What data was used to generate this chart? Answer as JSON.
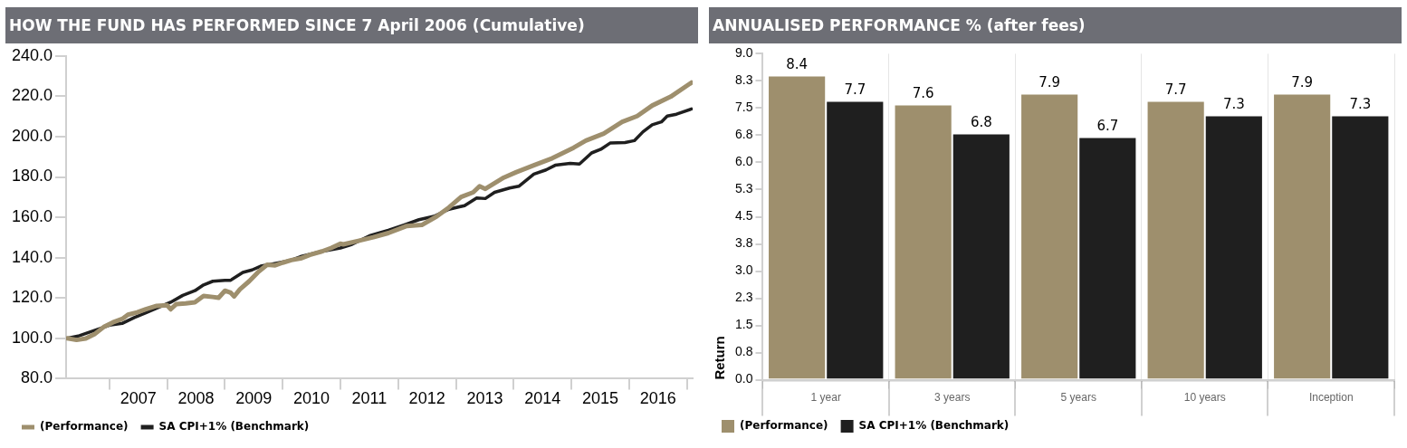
{
  "chart_data": [
    {
      "type": "line",
      "title": "HOW THE FUND HAS PERFORMED SINCE 7 April 2006 (Cumulative)",
      "xlim": [
        2006.25,
        2017.1
      ],
      "ylim": [
        80,
        240
      ],
      "xticks": [
        {
          "value": 2007,
          "label": null
        },
        {
          "value": 2007.5,
          "label": "2007"
        },
        {
          "value": 2008,
          "label": null
        },
        {
          "value": 2008.5,
          "label": "2008"
        },
        {
          "value": 2009,
          "label": null
        },
        {
          "value": 2009.5,
          "label": "2009"
        },
        {
          "value": 2010,
          "label": null
        },
        {
          "value": 2010.5,
          "label": "2010"
        },
        {
          "value": 2011,
          "label": null
        },
        {
          "value": 2011.5,
          "label": "2011"
        },
        {
          "value": 2012,
          "label": null
        },
        {
          "value": 2012.5,
          "label": "2012"
        },
        {
          "value": 2013,
          "label": null
        },
        {
          "value": 2013.5,
          "label": "2013"
        },
        {
          "value": 2014,
          "label": null
        },
        {
          "value": 2014.5,
          "label": "2014"
        },
        {
          "value": 2015,
          "label": null
        },
        {
          "value": 2015.5,
          "label": "2015"
        },
        {
          "value": 2016,
          "label": null
        },
        {
          "value": 2016.5,
          "label": "2016"
        },
        {
          "value": 2017,
          "label": null
        }
      ],
      "yticks": [
        {
          "value": 80,
          "label": "80.0"
        },
        {
          "value": 100,
          "label": "100.0"
        },
        {
          "value": 120,
          "label": "120.0"
        },
        {
          "value": 140,
          "label": "140.0"
        },
        {
          "value": 160,
          "label": "160.0"
        },
        {
          "value": 180,
          "label": "180.0"
        },
        {
          "value": 200,
          "label": "200.0"
        },
        {
          "value": 220,
          "label": "220.0"
        },
        {
          "value": 240,
          "label": "240.0"
        }
      ],
      "grid": false,
      "legend": "bottom",
      "marker": "none",
      "line_style": "solid",
      "series": [
        {
          "name": "(Performance)",
          "color": "#9e8f6d",
          "x": [
            2006.27,
            2006.43,
            2006.59,
            2006.74,
            2006.9,
            2007.06,
            2007.22,
            2007.32,
            2007.48,
            2007.63,
            2007.82,
            2008.0,
            2008.06,
            2008.16,
            2008.32,
            2008.48,
            2008.63,
            2008.79,
            2008.89,
            2009.0,
            2009.1,
            2009.16,
            2009.26,
            2009.42,
            2009.57,
            2009.73,
            2009.87,
            2010.0,
            2010.15,
            2010.31,
            2010.47,
            2010.68,
            2010.84,
            2011.0,
            2011.05,
            2011.31,
            2011.57,
            2011.83,
            2012.15,
            2012.41,
            2012.67,
            2012.88,
            2013.09,
            2013.3,
            2013.41,
            2013.51,
            2013.83,
            2014.04,
            2014.35,
            2014.67,
            2015.04,
            2015.25,
            2015.56,
            2015.88,
            2016.14,
            2016.4,
            2016.72,
            2017.08
          ],
          "values": [
            100.0,
            99.2,
            99.9,
            102.0,
            105.6,
            107.9,
            109.6,
            111.7,
            112.9,
            114.4,
            116.1,
            116.4,
            114.4,
            117.0,
            117.3,
            117.9,
            121.0,
            120.5,
            120.1,
            123.6,
            122.6,
            120.8,
            124.3,
            128.3,
            132.7,
            136.5,
            136.2,
            137.5,
            138.8,
            139.6,
            141.4,
            143.1,
            144.8,
            146.9,
            146.6,
            148.3,
            150.1,
            152.2,
            155.7,
            156.2,
            160.5,
            164.9,
            170.1,
            172.4,
            175.4,
            174.1,
            179.7,
            182.3,
            185.8,
            189.3,
            194.5,
            198.0,
            201.5,
            207.3,
            210.2,
            215.4,
            219.8,
            226.8
          ]
        },
        {
          "name": "SA CPI+1% (Benchmark)",
          "color": "#1f1f1f",
          "x": [
            2006.27,
            2006.48,
            2006.74,
            2007.0,
            2007.22,
            2007.43,
            2007.63,
            2007.84,
            2008.06,
            2008.27,
            2008.48,
            2008.63,
            2008.79,
            2009.0,
            2009.1,
            2009.31,
            2009.47,
            2009.62,
            2009.84,
            2010.0,
            2010.15,
            2010.31,
            2010.68,
            2011.0,
            2011.2,
            2011.52,
            2011.83,
            2012.1,
            2012.36,
            2012.62,
            2012.88,
            2013.15,
            2013.36,
            2013.51,
            2013.67,
            2013.93,
            2014.09,
            2014.35,
            2014.56,
            2014.72,
            2014.98,
            2015.14,
            2015.35,
            2015.51,
            2015.67,
            2015.93,
            2016.09,
            2016.24,
            2016.4,
            2016.56,
            2016.66,
            2016.82,
            2017.08
          ],
          "values": [
            100.1,
            101.3,
            103.9,
            106.5,
            107.4,
            110.3,
            112.6,
            115.2,
            117.9,
            121.3,
            123.6,
            126.5,
            128.3,
            128.8,
            128.8,
            132.7,
            133.9,
            135.8,
            137.0,
            137.9,
            138.8,
            140.5,
            143.1,
            144.8,
            146.6,
            151.0,
            153.6,
            156.2,
            158.8,
            160.5,
            164.0,
            165.8,
            169.6,
            169.3,
            172.4,
            174.5,
            175.4,
            181.4,
            183.5,
            185.8,
            186.7,
            186.4,
            191.9,
            193.7,
            196.8,
            197.1,
            198.0,
            202.4,
            205.9,
            207.3,
            210.2,
            211.1,
            213.7
          ]
        }
      ]
    },
    {
      "type": "bar",
      "title": "ANNUALISED PERFORMANCE % (after fees)",
      "ylabel": "Return",
      "categories": [
        "1 year",
        "3 years",
        "5 years",
        "10 years",
        "Inception"
      ],
      "ylim": [
        0,
        9
      ],
      "yticks": [
        {
          "value": 0,
          "label": "0.0"
        },
        {
          "value": 0.75,
          "label": "0.8"
        },
        {
          "value": 1.5,
          "label": "1.5"
        },
        {
          "value": 2.25,
          "label": "2.3"
        },
        {
          "value": 3,
          "label": "3.0"
        },
        {
          "value": 3.75,
          "label": "3.8"
        },
        {
          "value": 4.5,
          "label": "4.5"
        },
        {
          "value": 5.25,
          "label": "5.3"
        },
        {
          "value": 6,
          "label": "6.0"
        },
        {
          "value": 6.75,
          "label": "6.8"
        },
        {
          "value": 7.5,
          "label": "7.5"
        },
        {
          "value": 8.25,
          "label": "8.3"
        },
        {
          "value": 9,
          "label": "9.0"
        }
      ],
      "grid": false,
      "legend": "bottom",
      "data_labels": true,
      "series": [
        {
          "name": "(Performance)",
          "color": "#9e8f6d",
          "values": [
            8.4,
            7.6,
            7.9,
            7.7,
            7.9
          ]
        },
        {
          "name": "SA CPI+1% (Benchmark)",
          "color": "#1f1f1f",
          "values": [
            7.7,
            6.8,
            6.7,
            7.3,
            7.3
          ]
        }
      ]
    }
  ]
}
